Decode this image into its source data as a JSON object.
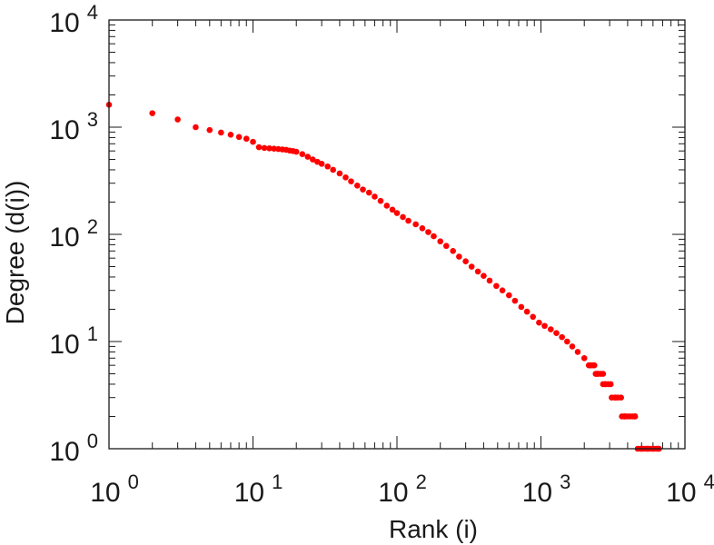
{
  "chart_data": {
    "type": "scatter",
    "title": "",
    "xlabel": "Rank (i)",
    "ylabel": "Degree (d(i))",
    "xscale": "log",
    "yscale": "log",
    "xlim": [
      1,
      10000
    ],
    "ylim": [
      1,
      10000
    ],
    "grid": false,
    "marker_color": "#ff0000",
    "axis_color": "#1a1a1a",
    "x_ticks": [
      {
        "base": "10",
        "exp": "0"
      },
      {
        "base": "10",
        "exp": "1"
      },
      {
        "base": "10",
        "exp": "2"
      },
      {
        "base": "10",
        "exp": "3"
      },
      {
        "base": "10",
        "exp": "4"
      }
    ],
    "y_ticks": [
      {
        "base": "10",
        "exp": "0"
      },
      {
        "base": "10",
        "exp": "1"
      },
      {
        "base": "10",
        "exp": "2"
      },
      {
        "base": "10",
        "exp": "3"
      },
      {
        "base": "10",
        "exp": "4"
      }
    ],
    "series": [
      {
        "name": "degree",
        "points": [
          [
            1,
            1620
          ],
          [
            2,
            1350
          ],
          [
            3,
            1180
          ],
          [
            4,
            1000
          ],
          [
            5,
            940
          ],
          [
            6,
            890
          ],
          [
            7,
            850
          ],
          [
            8,
            810
          ],
          [
            9,
            780
          ],
          [
            10,
            730
          ],
          [
            11,
            650
          ],
          [
            12,
            640
          ],
          [
            13,
            635
          ],
          [
            14,
            630
          ],
          [
            15,
            625
          ],
          [
            16,
            620
          ],
          [
            17,
            615
          ],
          [
            18,
            605
          ],
          [
            19,
            598
          ],
          [
            20,
            590
          ],
          [
            22,
            560
          ],
          [
            24,
            530
          ],
          [
            26,
            500
          ],
          [
            28,
            475
          ],
          [
            30,
            455
          ],
          [
            33,
            430
          ],
          [
            36,
            400
          ],
          [
            40,
            370
          ],
          [
            44,
            340
          ],
          [
            48,
            312
          ],
          [
            53,
            285
          ],
          [
            58,
            262
          ],
          [
            64,
            245
          ],
          [
            70,
            225
          ],
          [
            77,
            205
          ],
          [
            85,
            185
          ],
          [
            93,
            170
          ],
          [
            100,
            158
          ],
          [
            110,
            145
          ],
          [
            120,
            134
          ],
          [
            135,
            124
          ],
          [
            150,
            114
          ],
          [
            165,
            105
          ],
          [
            180,
            96
          ],
          [
            200,
            86
          ],
          [
            220,
            78
          ],
          [
            245,
            70
          ],
          [
            270,
            62
          ],
          [
            300,
            56
          ],
          [
            330,
            50
          ],
          [
            365,
            45
          ],
          [
            400,
            41
          ],
          [
            440,
            37
          ],
          [
            490,
            33
          ],
          [
            540,
            30
          ],
          [
            600,
            27
          ],
          [
            660,
            24
          ],
          [
            730,
            21
          ],
          [
            800,
            19
          ],
          [
            880,
            17
          ],
          [
            970,
            15
          ],
          [
            1060,
            14
          ],
          [
            1170,
            13
          ],
          [
            1280,
            12
          ],
          [
            1400,
            11
          ],
          [
            1520,
            10
          ],
          [
            1650,
            9
          ],
          [
            1800,
            8
          ],
          [
            2000,
            7
          ],
          [
            2200,
            6
          ],
          [
            2450,
            5
          ],
          [
            2800,
            4
          ],
          [
            3300,
            3
          ],
          [
            3800,
            2
          ],
          [
            4500,
            2
          ],
          [
            5000,
            1
          ],
          [
            5500,
            1
          ],
          [
            6000,
            1
          ],
          [
            6500,
            1
          ]
        ],
        "runs": [
          {
            "y": 6,
            "x_start": 2150,
            "x_end": 2350
          },
          {
            "y": 5,
            "x_start": 2400,
            "x_end": 2700
          },
          {
            "y": 4,
            "x_start": 2700,
            "x_end": 3050
          },
          {
            "y": 3,
            "x_start": 3100,
            "x_end": 3600
          },
          {
            "y": 2,
            "x_start": 3650,
            "x_end": 4500
          },
          {
            "y": 1,
            "x_start": 4700,
            "x_end": 6600
          }
        ]
      }
    ]
  }
}
